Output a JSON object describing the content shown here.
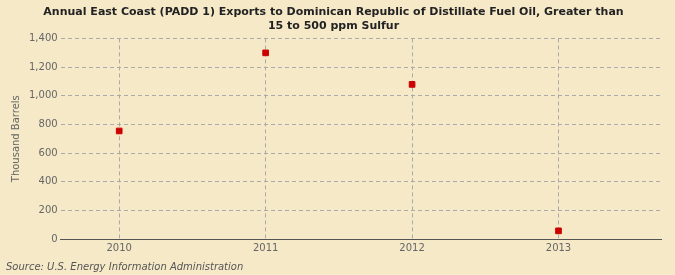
{
  "chart_data": {
    "type": "scatter",
    "title": "Annual East Coast (PADD 1) Exports to Dominican Republic of Distillate Fuel Oil, Greater than\n15 to 500 ppm Sulfur",
    "ylabel": "Thousand Barrels",
    "source": "Source: U.S. Energy Information Administration",
    "x": [
      2010,
      2011,
      2012,
      2013
    ],
    "values": [
      754,
      1299,
      1079,
      57
    ],
    "color": "#cc0000",
    "marker": "square",
    "background_color": "#f5e9c8",
    "grid_color": "#aaaaaa",
    "grid": true,
    "ylim": [
      0,
      1400
    ],
    "yticks": [
      0,
      200,
      400,
      600,
      800,
      {
        "value": 1000,
        "label": "1,000"
      },
      {
        "value": 1200,
        "label": "1,200"
      },
      {
        "value": 1400,
        "label": "1,400"
      }
    ],
    "xlim": [
      2009.6,
      2013.7
    ],
    "xticks": [
      2010,
      2011,
      2012,
      2013
    ]
  }
}
